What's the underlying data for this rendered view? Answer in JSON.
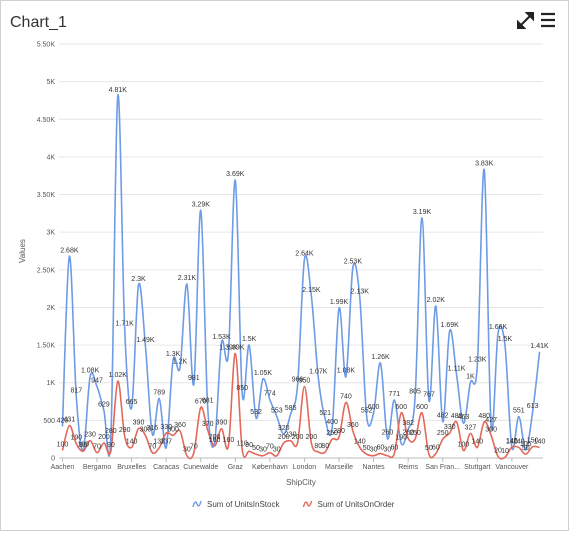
{
  "chart_data": {
    "type": "spline",
    "title": "Chart_1",
    "x_label": "ShipCity",
    "y_label": "Values",
    "categories": [
      "Aachen",
      null,
      null,
      null,
      null,
      "Bergamo",
      null,
      null,
      null,
      null,
      "Bruxelles",
      null,
      null,
      null,
      null,
      "Caracas",
      null,
      null,
      null,
      null,
      "Cunewalde",
      null,
      null,
      null,
      null,
      "Graz",
      null,
      null,
      null,
      null,
      "København",
      null,
      null,
      null,
      null,
      "London",
      null,
      null,
      null,
      null,
      "Marseille",
      null,
      null,
      null,
      null,
      "Nantes",
      null,
      null,
      null,
      null,
      "Reims",
      null,
      null,
      null,
      null,
      "San Fran...",
      null,
      null,
      null,
      null,
      "Stuttgart",
      null,
      null,
      null,
      null,
      "Vancouver",
      null,
      null,
      null,
      null
    ],
    "series": [
      {
        "name": "Sum of UnitsInStock",
        "color": "#6d9be6",
        "values": [
          420,
          2680,
          817,
          100,
          1080,
          947,
          629,
          280,
          4810,
          1710,
          665,
          2300,
          1490,
          316,
          789,
          137,
          1300,
          1200,
          2310,
          981,
          3290,
          681,
          200,
          1530,
          1390,
          3690,
          850,
          1500,
          532,
          1050,
          774,
          553,
          320,
          585,
          966,
          2640,
          2150,
          1070,
          521,
          400,
          1990,
          1080,
          2530,
          2130,
          552,
          600,
          1260,
          260,
          771,
          190,
          382,
          805,
          3190,
          767,
          2020,
          482,
          1690,
          1110,
          463,
          1000,
          1230,
          3830,
          427,
          1660,
          1500,
          140,
          551,
          105,
          613,
          1410
        ],
        "value_labels": [
          "420",
          "2.68K",
          "817",
          "100",
          "1.08K",
          "947",
          "629",
          "280",
          "4.81K",
          "1.71K",
          "665",
          "2.3K",
          "1.49K",
          "316",
          "789",
          "137",
          "1.3K",
          "1.2K",
          "2.31K",
          "981",
          "3.29K",
          "681",
          "200",
          "1.53K",
          "1.39K",
          "3.69K",
          "850",
          "1.5K",
          "532",
          "1.05K",
          "774",
          "553",
          "320",
          "585",
          "966",
          "2.64K",
          "2.15K",
          "1.07K",
          "521",
          "400",
          "1.99K",
          "1.08K",
          "2.53K",
          "2.13K",
          "552",
          "600",
          "1.26K",
          "260",
          "771",
          "190",
          "382",
          "805",
          "3.19K",
          "767",
          "2.02K",
          "482",
          "1.69K",
          "1.11K",
          "463",
          "1K",
          "1.23K",
          "3.83K",
          "427",
          "1.66K",
          "1.5K",
          "140",
          "551",
          "105",
          "613",
          "1.41K"
        ]
      },
      {
        "name": "Sum of UnitsOnOrder",
        "color": "#e3685a",
        "values": [
          100,
          431,
          190,
          90,
          230,
          70,
          200,
          90,
          1020,
          290,
          140,
          390,
          300,
          70,
          137,
          330,
          300,
          360,
          30,
          70,
          670,
          370,
          160,
          390,
          160,
          1390,
          110,
          90,
          50,
          30,
          70,
          30,
          200,
          230,
          200,
          950,
          200,
          80,
          80,
          250,
          280,
          740,
          360,
          140,
          50,
          30,
          60,
          30,
          60,
          600,
          260,
          250,
          600,
          50,
          60,
          250,
          330,
          480,
          100,
          327,
          140,
          480,
          300,
          20,
          10,
          145,
          140,
          50,
          150,
          140
        ],
        "value_labels": [
          "100",
          "431",
          "190",
          "90",
          "230",
          "70",
          "200",
          "90",
          "1.02K",
          "290",
          "140",
          "390",
          "300",
          "70",
          "137",
          "330",
          "300",
          "360",
          "30",
          "70",
          "670",
          "370",
          "160",
          "390",
          "160",
          "1.39K",
          "110",
          "90",
          "50",
          "30",
          "70",
          "30",
          "200",
          "230",
          "200",
          "950",
          "200",
          "80",
          "80",
          "250",
          "280",
          "740",
          "360",
          "140",
          "50",
          "30",
          "60",
          "30",
          "60",
          "600",
          "260",
          "250",
          "600",
          "50",
          "60",
          "250",
          "330",
          "480",
          "100",
          "327",
          "140",
          "480",
          "300",
          "20",
          "10",
          "145",
          "140",
          "50",
          "150",
          "140"
        ]
      }
    ],
    "ylim": [
      0,
      5500
    ],
    "yticks": [
      0,
      500,
      {
        "value": 1000,
        "label": "1K"
      },
      {
        "value": 1500,
        "label": "1.50K"
      },
      {
        "value": 2000,
        "label": "2K"
      },
      {
        "value": 2500,
        "label": "2.50K"
      },
      {
        "value": 3000,
        "label": "3K"
      },
      {
        "value": 3500,
        "label": "3.50K"
      },
      {
        "value": 4000,
        "label": "4K"
      },
      {
        "value": 4500,
        "label": "4.50K"
      },
      {
        "value": 5000,
        "label": "5K"
      },
      {
        "value": 5500,
        "label": "5.50K"
      }
    ],
    "grid": true,
    "legend": "bottom"
  }
}
